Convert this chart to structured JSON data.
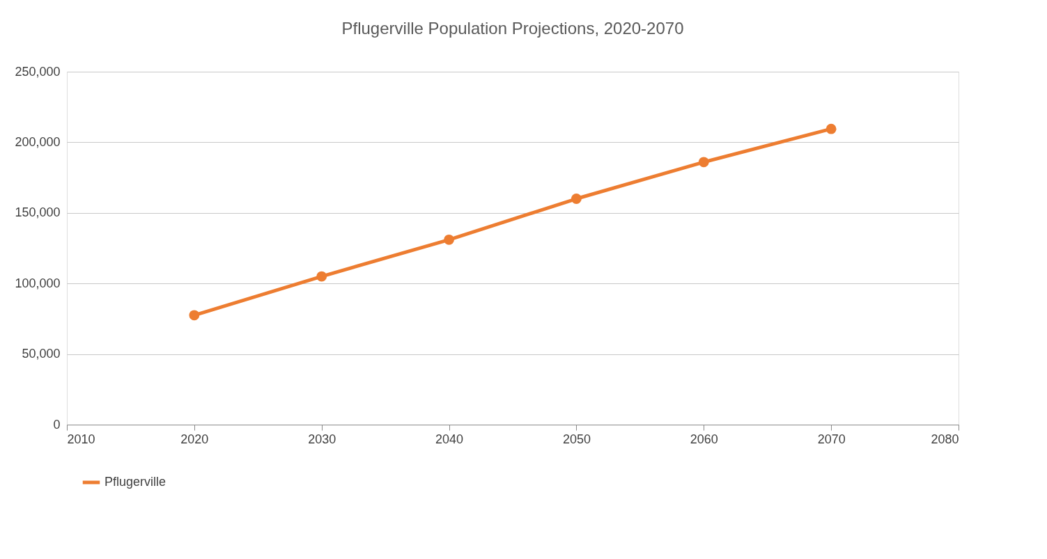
{
  "chart_data": {
    "type": "line",
    "title": "Pflugerville Population Projections, 2020-2070",
    "x": [
      2020,
      2030,
      2040,
      2050,
      2060,
      2070
    ],
    "series": [
      {
        "name": "Pflugerville",
        "color": "#ed7d31",
        "values": [
          77500,
          105000,
          131000,
          160000,
          186000,
          209500
        ]
      }
    ],
    "xlim": [
      2010,
      2080
    ],
    "xticks": [
      2010,
      2020,
      2030,
      2040,
      2050,
      2060,
      2070,
      2080
    ],
    "ylim": [
      0,
      250000
    ],
    "yticks": [
      {
        "value": 0,
        "label": "0"
      },
      {
        "value": 50000,
        "label": "50,000"
      },
      {
        "value": 100000,
        "label": "100,000"
      },
      {
        "value": 150000,
        "label": "150,000"
      },
      {
        "value": 200000,
        "label": "200,000"
      },
      {
        "value": 250000,
        "label": "250,000"
      }
    ],
    "grid": "y",
    "legend": "bottom",
    "marker": "circle",
    "line_style": "solid"
  }
}
